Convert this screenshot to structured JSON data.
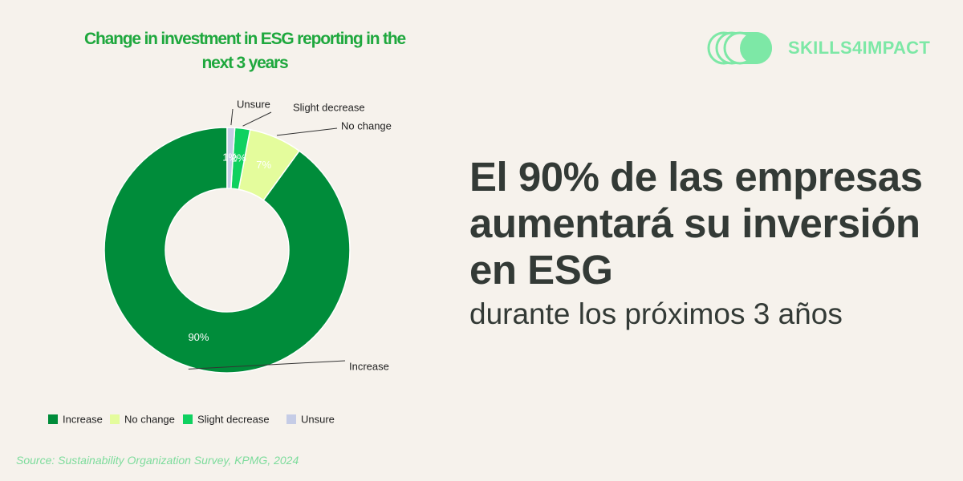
{
  "brand": "SKILLS4IMPACT",
  "headline": "El 90% de las empresas aumentará su inversión en ESG",
  "subline": "durante los próximos 3 años",
  "source": "Source: Sustainability Organization Survey, KPMG, 2024",
  "chart_data": {
    "type": "donut",
    "title": "Change in investment in ESG reporting in the next 3 years",
    "categories": [
      "Increase",
      "No change",
      "Slight decrease",
      "Unsure"
    ],
    "values": [
      90,
      7,
      2,
      1
    ],
    "value_labels": [
      "90%",
      "7%",
      "2%",
      "1%"
    ],
    "colors": [
      "#008c3a",
      "#e4fc9c",
      "#0fd160",
      "#c5cce6"
    ],
    "legend": "bottom"
  }
}
